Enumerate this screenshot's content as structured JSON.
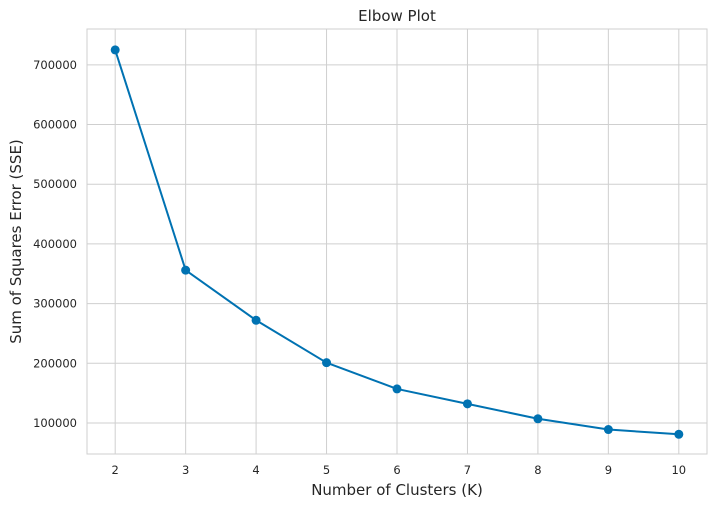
{
  "chart_data": {
    "type": "line",
    "title": "Elbow Plot",
    "xlabel": "Number of Clusters (K)",
    "ylabel": "Sum of Squares Error (SSE)",
    "x": [
      2,
      3,
      4,
      5,
      6,
      7,
      8,
      9,
      10
    ],
    "series": [
      {
        "values": [
          725000,
          356000,
          272000,
          201000,
          157000,
          132000,
          107000,
          89000,
          81000
        ]
      }
    ],
    "xlim": [
      1.6,
      10.4
    ],
    "ylim": [
      48000,
      760000
    ],
    "xticks": [
      "2",
      "3",
      "4",
      "5",
      "6",
      "7",
      "8",
      "9",
      "10"
    ],
    "yticks": [
      "100000",
      "200000",
      "300000",
      "400000",
      "500000",
      "600000",
      "700000"
    ],
    "grid": true,
    "line_color": "#0072b2"
  }
}
